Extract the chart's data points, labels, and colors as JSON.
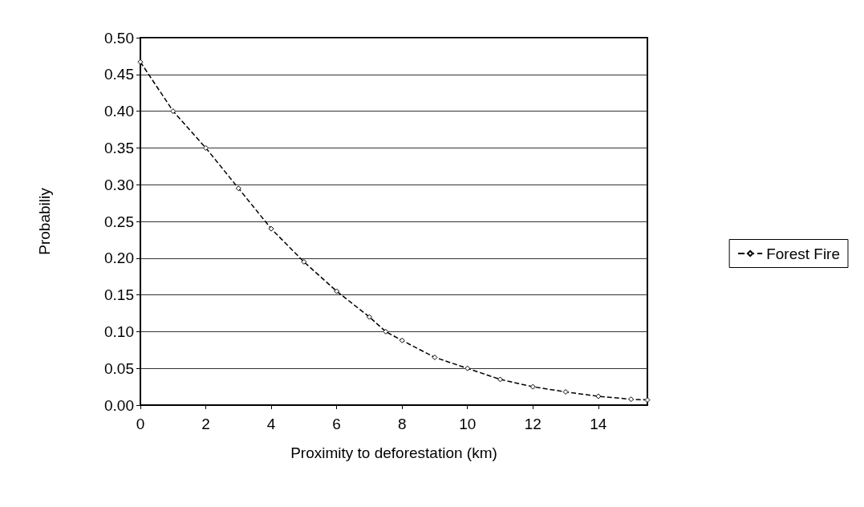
{
  "chart_data": {
    "type": "line",
    "xlabel": "Proximity to deforestation (km)",
    "ylabel": "Probabiliy",
    "x": [
      0,
      1,
      2,
      3,
      4,
      5,
      6,
      7,
      7.5,
      8,
      9,
      10,
      11,
      12,
      13,
      14,
      15,
      15.5
    ],
    "series": [
      {
        "name": "Forest Fire",
        "color": "#000000",
        "values": [
          0.467,
          0.4,
          0.35,
          0.295,
          0.24,
          0.195,
          0.155,
          0.12,
          0.1,
          0.088,
          0.065,
          0.05,
          0.035,
          0.025,
          0.018,
          0.012,
          0.008,
          0.007
        ]
      }
    ],
    "xlim": [
      0,
      15.5
    ],
    "xticks": [
      0,
      2,
      4,
      6,
      8,
      10,
      12,
      14
    ],
    "ylim": [
      0,
      0.5
    ],
    "yticks": [
      {
        "value": 0,
        "label": "0.00"
      },
      0.05,
      {
        "value": 0.1,
        "label": "0.10"
      },
      0.15,
      {
        "value": 0.2,
        "label": "0.20"
      },
      0.25,
      {
        "value": 0.3,
        "label": "0.30"
      },
      0.35,
      {
        "value": 0.4,
        "label": "0.40"
      },
      0.45,
      {
        "value": 0.5,
        "label": "0.50"
      }
    ],
    "grid": "y",
    "legend": "right",
    "marker": "diamond",
    "line_style": "dashed"
  }
}
